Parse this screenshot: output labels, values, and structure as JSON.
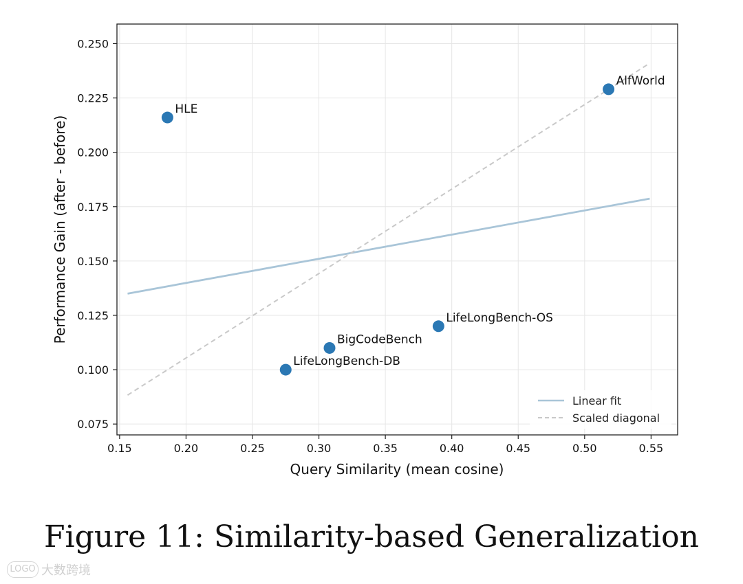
{
  "chart_data": {
    "type": "scatter",
    "title": "",
    "xlabel": "Query Similarity (mean cosine)",
    "ylabel": "Performance Gain (after - before)",
    "xlim": [
      0.148,
      0.57
    ],
    "ylim": [
      0.07,
      0.259
    ],
    "xticks": [
      0.15,
      0.2,
      0.25,
      0.3,
      0.35,
      0.4,
      0.45,
      0.5,
      0.55
    ],
    "xtick_labels": [
      "0.15",
      "0.20",
      "0.25",
      "0.30",
      "0.35",
      "0.40",
      "0.45",
      "0.50",
      "0.55"
    ],
    "yticks": [
      0.075,
      0.1,
      0.125,
      0.15,
      0.175,
      0.2,
      0.225,
      0.25
    ],
    "ytick_labels": [
      "0.075",
      "0.100",
      "0.125",
      "0.150",
      "0.175",
      "0.200",
      "0.225",
      "0.250"
    ],
    "grid": true,
    "point_color": "#2b78b4",
    "points": [
      {
        "label": "HLE",
        "x": 0.186,
        "y": 0.216
      },
      {
        "label": "AlfWorld",
        "x": 0.518,
        "y": 0.229
      },
      {
        "label": "BigCodeBench",
        "x": 0.308,
        "y": 0.11
      },
      {
        "label": "LifeLongBench-OS",
        "x": 0.39,
        "y": 0.12
      },
      {
        "label": "LifeLongBench-DB",
        "x": 0.275,
        "y": 0.1
      }
    ],
    "lines": [
      {
        "name": "Linear fit",
        "style": "solid",
        "color": "#a9c5d8",
        "x": [
          0.156,
          0.549
        ],
        "y": [
          0.135,
          0.1787
        ]
      },
      {
        "name": "Scaled diagonal",
        "style": "dashed",
        "color": "#c9c9c9",
        "x": [
          0.156,
          0.549
        ],
        "y": [
          0.0883,
          0.241
        ]
      }
    ],
    "legend_position": "bottom-right"
  },
  "caption": "Figure 11: Similarity-based Generalization",
  "watermark": {
    "mark": "LOGO",
    "text": "大数跨境"
  }
}
